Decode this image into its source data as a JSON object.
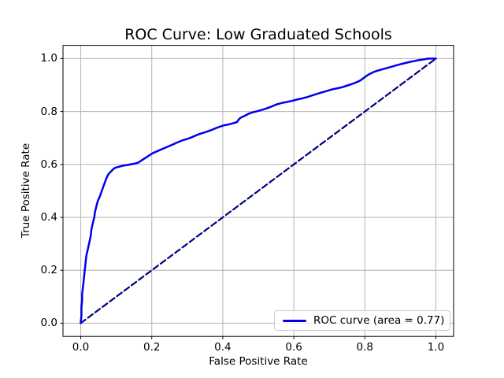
{
  "colors": {
    "roc_curve": "#0000ee",
    "chance_line": "#000080",
    "grid": "#b2b2b2",
    "spine": "#000000",
    "legend_border": "#cccccc",
    "background": "#ffffff",
    "text": "#000000"
  },
  "chart_data": {
    "type": "line",
    "title": "ROC Curve: Low Graduated Schools",
    "xlabel": "False Positive Rate",
    "ylabel": "True Positive Rate",
    "xlim": [
      -0.05,
      1.05
    ],
    "ylim": [
      -0.05,
      1.05
    ],
    "xticks": [
      0.0,
      0.2,
      0.4,
      0.6,
      0.8,
      1.0
    ],
    "yticks": [
      0.0,
      0.2,
      0.4,
      0.6,
      0.8,
      1.0
    ],
    "grid": true,
    "auc": 0.77,
    "legend": {
      "position": "lower right",
      "entries": [
        {
          "label": "ROC curve (area = 0.77)",
          "color": "#0000ee",
          "style": "solid"
        }
      ]
    },
    "series": [
      {
        "id": "chance-diagonal-line",
        "name": "chance diagonal",
        "color": "#000080",
        "width": 2.2,
        "dash": [
          7.5,
          4
        ],
        "points": [
          [
            0,
            0
          ],
          [
            1,
            1
          ]
        ]
      },
      {
        "id": "roc-curve-line",
        "name": "ROC curve (area = 0.77)",
        "color": "#0000ee",
        "width": 2.5,
        "dash": null,
        "points": [
          [
            0.0,
            0.0
          ],
          [
            0.002,
            0.03
          ],
          [
            0.002,
            0.06
          ],
          [
            0.004,
            0.085
          ],
          [
            0.004,
            0.11
          ],
          [
            0.006,
            0.135
          ],
          [
            0.008,
            0.16
          ],
          [
            0.01,
            0.185
          ],
          [
            0.012,
            0.21
          ],
          [
            0.014,
            0.235
          ],
          [
            0.016,
            0.258
          ],
          [
            0.02,
            0.28
          ],
          [
            0.024,
            0.305
          ],
          [
            0.028,
            0.33
          ],
          [
            0.03,
            0.355
          ],
          [
            0.034,
            0.378
          ],
          [
            0.038,
            0.4
          ],
          [
            0.04,
            0.42
          ],
          [
            0.044,
            0.442
          ],
          [
            0.048,
            0.462
          ],
          [
            0.054,
            0.48
          ],
          [
            0.058,
            0.495
          ],
          [
            0.062,
            0.51
          ],
          [
            0.066,
            0.525
          ],
          [
            0.07,
            0.54
          ],
          [
            0.074,
            0.553
          ],
          [
            0.078,
            0.563
          ],
          [
            0.084,
            0.572
          ],
          [
            0.09,
            0.58
          ],
          [
            0.096,
            0.587
          ],
          [
            0.104,
            0.59
          ],
          [
            0.112,
            0.593
          ],
          [
            0.122,
            0.596
          ],
          [
            0.132,
            0.598
          ],
          [
            0.142,
            0.601
          ],
          [
            0.152,
            0.603
          ],
          [
            0.162,
            0.607
          ],
          [
            0.17,
            0.614
          ],
          [
            0.178,
            0.621
          ],
          [
            0.186,
            0.628
          ],
          [
            0.194,
            0.635
          ],
          [
            0.202,
            0.642
          ],
          [
            0.212,
            0.648
          ],
          [
            0.224,
            0.655
          ],
          [
            0.236,
            0.662
          ],
          [
            0.248,
            0.669
          ],
          [
            0.26,
            0.676
          ],
          [
            0.272,
            0.683
          ],
          [
            0.284,
            0.69
          ],
          [
            0.296,
            0.695
          ],
          [
            0.308,
            0.7
          ],
          [
            0.32,
            0.707
          ],
          [
            0.332,
            0.714
          ],
          [
            0.344,
            0.719
          ],
          [
            0.356,
            0.724
          ],
          [
            0.368,
            0.73
          ],
          [
            0.38,
            0.737
          ],
          [
            0.392,
            0.743
          ],
          [
            0.404,
            0.748
          ],
          [
            0.416,
            0.751
          ],
          [
            0.428,
            0.755
          ],
          [
            0.44,
            0.76
          ],
          [
            0.446,
            0.772
          ],
          [
            0.452,
            0.778
          ],
          [
            0.462,
            0.784
          ],
          [
            0.472,
            0.791
          ],
          [
            0.484,
            0.797
          ],
          [
            0.496,
            0.801
          ],
          [
            0.51,
            0.806
          ],
          [
            0.524,
            0.812
          ],
          [
            0.538,
            0.819
          ],
          [
            0.552,
            0.827
          ],
          [
            0.566,
            0.832
          ],
          [
            0.58,
            0.836
          ],
          [
            0.594,
            0.84
          ],
          [
            0.608,
            0.845
          ],
          [
            0.622,
            0.849
          ],
          [
            0.636,
            0.854
          ],
          [
            0.65,
            0.86
          ],
          [
            0.664,
            0.866
          ],
          [
            0.678,
            0.872
          ],
          [
            0.692,
            0.877
          ],
          [
            0.706,
            0.883
          ],
          [
            0.72,
            0.887
          ],
          [
            0.734,
            0.891
          ],
          [
            0.748,
            0.897
          ],
          [
            0.762,
            0.903
          ],
          [
            0.776,
            0.91
          ],
          [
            0.788,
            0.918
          ],
          [
            0.8,
            0.93
          ],
          [
            0.812,
            0.941
          ],
          [
            0.826,
            0.95
          ],
          [
            0.84,
            0.956
          ],
          [
            0.856,
            0.962
          ],
          [
            0.872,
            0.968
          ],
          [
            0.888,
            0.974
          ],
          [
            0.904,
            0.98
          ],
          [
            0.92,
            0.985
          ],
          [
            0.936,
            0.99
          ],
          [
            0.952,
            0.994
          ],
          [
            0.966,
            0.997
          ],
          [
            0.98,
            1.0
          ],
          [
            1.0,
            1.0
          ]
        ]
      }
    ]
  }
}
